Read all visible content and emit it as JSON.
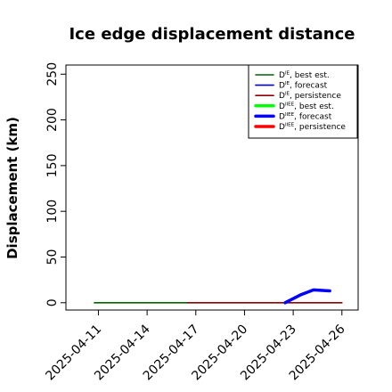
{
  "chart_data": {
    "type": "line",
    "title": "Ice edge displacement distance",
    "xlabel": "",
    "ylabel": "Displacement (km)",
    "ylim": [
      -8,
      260
    ],
    "xlim": [
      "2025-04-09",
      "2025-04-27"
    ],
    "y_ticks": [
      0,
      50,
      100,
      150,
      200,
      250
    ],
    "x_ticks": [
      {
        "label": "2025-04-11",
        "date": "2025-04-11",
        "color": "#000000"
      },
      {
        "label": "2025-04-14",
        "date": "2025-04-14",
        "color": "#000000"
      },
      {
        "label": "2025-04-17",
        "date": "2025-04-17",
        "color": "#228b22"
      },
      {
        "label": "2025-04-20",
        "date": "2025-04-20",
        "color": "#000000"
      },
      {
        "label": "2025-04-23",
        "date": "2025-04-23",
        "color": "#000000"
      },
      {
        "label": "2025-04-26",
        "date": "2025-04-26",
        "color": "#000000"
      }
    ],
    "grid": false,
    "legend_position": "top-right",
    "series": [
      {
        "name": "D^IE, best est.",
        "color": "#006400",
        "width": "thin",
        "x": [
          "2025-04-10T18:00",
          "2025-04-16T12:00"
        ],
        "values": [
          0,
          0
        ]
      },
      {
        "name": "D^IE, forecast",
        "color": "#0000cd",
        "width": "thin",
        "x": [],
        "values": []
      },
      {
        "name": "D^IE, persistence",
        "color": "#8b0000",
        "width": "thin",
        "x": [
          "2025-04-16T12:00",
          "2025-04-26T00:00"
        ],
        "values": [
          0,
          0
        ]
      },
      {
        "name": "D^IIEE, best est.",
        "color": "#00ff00",
        "width": "thick",
        "x": [],
        "values": []
      },
      {
        "name": "D^IIEE, forecast",
        "color": "#0000ff",
        "width": "thick",
        "x": [
          "2025-04-22T12:00",
          "2025-04-23T12:00",
          "2025-04-24T06:00",
          "2025-04-25T06:00"
        ],
        "values": [
          0,
          9,
          14,
          13
        ]
      },
      {
        "name": "D^IIEE, persistence",
        "color": "#ff0000",
        "width": "thick",
        "x": [],
        "values": []
      }
    ],
    "legend": [
      {
        "base": "D",
        "sup": "IE",
        "rest": ", best est.",
        "color": "#006400",
        "thick": false
      },
      {
        "base": "D",
        "sup": "IE",
        "rest": ", forecast",
        "color": "#0000cd",
        "thick": false
      },
      {
        "base": "D",
        "sup": "IE",
        "rest": ", persistence",
        "color": "#8b0000",
        "thick": false
      },
      {
        "base": "D",
        "sup": "IIEE",
        "rest": ", best est.",
        "color": "#00ff00",
        "thick": true
      },
      {
        "base": "D",
        "sup": "IIEE",
        "rest": ", forecast",
        "color": "#0000ff",
        "thick": true
      },
      {
        "base": "D",
        "sup": "IIEE",
        "rest": ", persistence",
        "color": "#ff0000",
        "thick": true
      }
    ]
  }
}
